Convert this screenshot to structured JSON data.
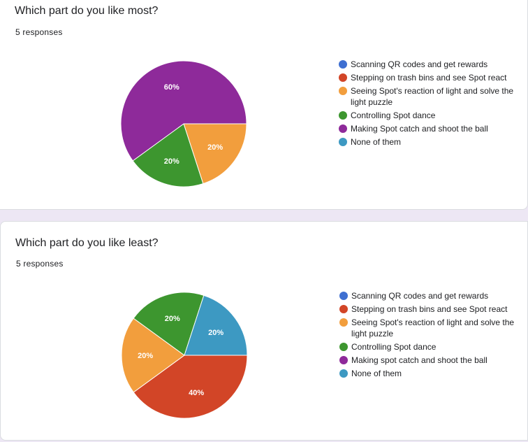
{
  "chart_data": [
    {
      "type": "pie",
      "title": "Which part do you like most?",
      "subtitle": "5 responses",
      "legend_position": "right",
      "categories": [
        "Scanning QR codes and get rewards",
        "Stepping on trash bins and see Spot react",
        "Seeing Spot's reaction of light and solve the light puzzle",
        "Controlling Spot dance",
        "Making Spot catch and shoot the ball",
        "None of them"
      ],
      "colors": [
        "#3366cc",
        "#dc3912",
        "#ff9900",
        "#109618",
        "#990099",
        "#0099c6"
      ],
      "display_colors": [
        "#3e6fd1",
        "#d24527",
        "#f29e3d",
        "#3d962f",
        "#8e2a9a",
        "#3d99c2"
      ],
      "values": [
        0,
        0,
        20,
        20,
        60,
        0
      ],
      "labels": [
        "",
        "",
        "20%",
        "20%",
        "60%",
        ""
      ]
    },
    {
      "type": "pie",
      "title": "Which part do you like least?",
      "subtitle": "5 responses",
      "legend_position": "right",
      "categories": [
        "Scanning QR codes and get rewards",
        "Stepping on trash bins and see Spot react",
        "Seeing Spot's reaction of light and solve the light puzzle",
        "Controlling Spot dance",
        "Making spot catch and shoot the ball",
        "None of them"
      ],
      "colors": [
        "#3366cc",
        "#dc3912",
        "#ff9900",
        "#109618",
        "#990099",
        "#0099c6"
      ],
      "display_colors": [
        "#3e6fd1",
        "#d24527",
        "#f29e3d",
        "#3d962f",
        "#8e2a9a",
        "#3d99c2"
      ],
      "values": [
        0,
        40,
        20,
        20,
        0,
        20
      ],
      "labels": [
        "",
        "40%",
        "20%",
        "20%",
        "",
        "20%"
      ]
    }
  ]
}
